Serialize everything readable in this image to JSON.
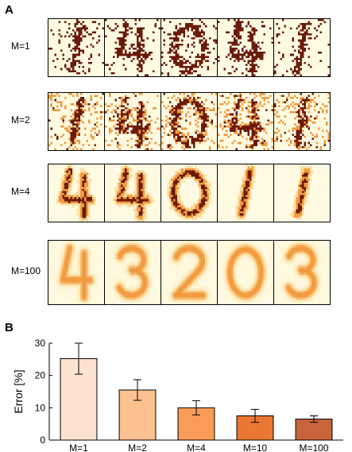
{
  "panel_a": {
    "letter": "A",
    "rows": [
      {
        "label": "M=1",
        "style": "binary",
        "samples": [
          1,
          4,
          0,
          4,
          1
        ]
      },
      {
        "label": "M=2",
        "style": "two-level",
        "samples": [
          1,
          4,
          0,
          4,
          1
        ]
      },
      {
        "label": "M=4",
        "style": "multi-level",
        "samples": [
          4,
          4,
          0,
          1,
          1
        ]
      },
      {
        "label": "M=100",
        "style": "smooth",
        "samples": [
          4,
          3,
          2,
          0,
          3
        ]
      }
    ],
    "colors": {
      "background": "#fffbe3",
      "dark": "#6b1a08",
      "mid": "#f29a3e",
      "light": "#fbdc9e"
    }
  },
  "panel_b": {
    "letter": "B"
  },
  "chart_data": {
    "type": "bar",
    "categories": [
      "M=1",
      "M=2",
      "M=4",
      "M=10",
      "M=100"
    ],
    "values": [
      25.2,
      15.5,
      10.0,
      7.5,
      6.5
    ],
    "errors": [
      4.8,
      3.2,
      2.2,
      2.0,
      1.0
    ],
    "ylabel": "Error [%]",
    "ylim": [
      0,
      30
    ],
    "yticks": [
      0,
      10,
      20,
      30
    ],
    "bar_colors": [
      "#fde3cf",
      "#fcc191",
      "#fa9c58",
      "#ea7733",
      "#c8643c"
    ],
    "grid": false
  }
}
